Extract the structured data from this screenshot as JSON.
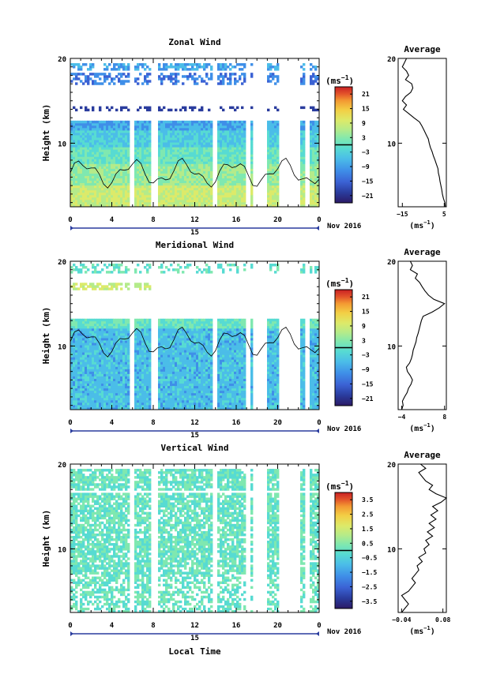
{
  "chart_data": [
    {
      "type": "heatmap",
      "title": "Zonal Wind",
      "ylabel": "Height (km)",
      "yticks": [
        "10",
        "20"
      ],
      "ylim": [
        2.5,
        20
      ],
      "xticks": [
        "0",
        "4",
        "8",
        "12",
        "16",
        "20",
        "0"
      ],
      "xlim": [
        0,
        24
      ],
      "day_label": "15",
      "date_label": "Nov 2016",
      "colorbar": {
        "unit": "(ms",
        "unit_exp": "−1",
        "ticks": [
          "21",
          "15",
          "9",
          "3",
          "−3",
          "−9",
          "−15",
          "−21"
        ],
        "range": [
          -24,
          24
        ]
      },
      "average": {
        "title": "Average",
        "xticks": [
          "−15",
          "5"
        ],
        "xlim": [
          -17,
          6
        ],
        "xunit": "(ms",
        "xunit_exp": "−1",
        "yticks": [
          "10",
          "20"
        ],
        "profile": [
          [
            5.5,
            2.5
          ],
          [
            5.3,
            3
          ],
          [
            4.6,
            3.5
          ],
          [
            4.1,
            4
          ],
          [
            3.8,
            4.5
          ],
          [
            3.4,
            5
          ],
          [
            3,
            5.5
          ],
          [
            2.7,
            6
          ],
          [
            2.2,
            6.5
          ],
          [
            2,
            7
          ],
          [
            1.3,
            7.5
          ],
          [
            0.6,
            8
          ],
          [
            -0.2,
            8.5
          ],
          [
            -0.8,
            9
          ],
          [
            -1.6,
            9.5
          ],
          [
            -2.2,
            10
          ],
          [
            -2.6,
            10.5
          ],
          [
            -3.6,
            11
          ],
          [
            -4.6,
            11.5
          ],
          [
            -5.6,
            12
          ],
          [
            -6.8,
            12.5
          ],
          [
            -9.5,
            13
          ],
          [
            -12,
            13.5
          ],
          [
            -14.5,
            14
          ],
          [
            -13,
            14.5
          ],
          [
            -15,
            15
          ],
          [
            -13.5,
            15.5
          ],
          [
            -11,
            16
          ],
          [
            -10,
            16.5
          ],
          [
            -10.5,
            17
          ],
          [
            -13.5,
            17.5
          ],
          [
            -12,
            18
          ],
          [
            -13,
            18.5
          ],
          [
            -15,
            19
          ],
          [
            -14,
            19.5
          ],
          [
            -13,
            20
          ]
        ]
      }
    },
    {
      "type": "heatmap",
      "title": "Meridional Wind",
      "ylabel": "Height (km)",
      "yticks": [
        "10",
        "20"
      ],
      "ylim": [
        2.5,
        20
      ],
      "xticks": [
        "0",
        "4",
        "8",
        "12",
        "16",
        "20",
        "0"
      ],
      "xlim": [
        0,
        24
      ],
      "day_label": "15",
      "date_label": "Nov 2016",
      "colorbar": {
        "unit": "(ms",
        "unit_exp": "−1",
        "ticks": [
          "21",
          "15",
          "9",
          "3",
          "−3",
          "−9",
          "−15",
          "−21"
        ],
        "range": [
          -24,
          24
        ]
      },
      "average": {
        "title": "Average",
        "xticks": [
          "−4",
          "8"
        ],
        "xlim": [
          -5,
          8.5
        ],
        "xunit": "(ms",
        "xunit_exp": "−1",
        "yticks": [
          "10",
          "20"
        ],
        "profile": [
          [
            -4,
            2.5
          ],
          [
            -3.6,
            3
          ],
          [
            -3.8,
            3.5
          ],
          [
            -3.2,
            4
          ],
          [
            -2.5,
            4.5
          ],
          [
            -2.1,
            5
          ],
          [
            -1.4,
            5.5
          ],
          [
            -1,
            6
          ],
          [
            -1.6,
            6.5
          ],
          [
            -2.4,
            7
          ],
          [
            -2.7,
            7.5
          ],
          [
            -1.8,
            8
          ],
          [
            -1.3,
            8.5
          ],
          [
            -1,
            9
          ],
          [
            -0.8,
            9.5
          ],
          [
            -0.4,
            10
          ],
          [
            0,
            10.5
          ],
          [
            0.2,
            11
          ],
          [
            0.6,
            11.5
          ],
          [
            0.9,
            12
          ],
          [
            1.2,
            12.5
          ],
          [
            1.5,
            13
          ],
          [
            2,
            13.5
          ],
          [
            4.5,
            14
          ],
          [
            6.5,
            14.5
          ],
          [
            8,
            15
          ],
          [
            5,
            15.5
          ],
          [
            3.5,
            16
          ],
          [
            2.5,
            16.5
          ],
          [
            1.7,
            17
          ],
          [
            1,
            17.5
          ],
          [
            -0.2,
            18
          ],
          [
            0.4,
            18.5
          ],
          [
            -1.6,
            19
          ],
          [
            -1,
            19.5
          ],
          [
            -1.6,
            20
          ]
        ]
      }
    },
    {
      "type": "heatmap",
      "title": "Vertical Wind",
      "ylabel": "Height (km)",
      "yticks": [
        "10",
        "20"
      ],
      "ylim": [
        2.5,
        20
      ],
      "xticks": [
        "0",
        "4",
        "8",
        "12",
        "16",
        "20",
        "0"
      ],
      "xlim": [
        0,
        24
      ],
      "xlabel": "Local Time",
      "day_label": "15",
      "date_label": "Nov 2016",
      "colorbar": {
        "unit": "(ms",
        "unit_exp": "−1",
        "ticks": [
          "3.5",
          "2.5",
          "1.5",
          "0.5",
          "−0.5",
          "−1.5",
          "−2.5",
          "−3.5"
        ],
        "range": [
          -4,
          4
        ]
      },
      "average": {
        "title": "Average",
        "xticks": [
          "−0.04",
          "0.08"
        ],
        "xlim": [
          -0.05,
          0.09
        ],
        "xunit": "(ms",
        "xunit_exp": "−1",
        "yticks": [
          "10",
          "20"
        ],
        "profile": [
          [
            -0.04,
            2.5
          ],
          [
            -0.03,
            3
          ],
          [
            -0.02,
            3.5
          ],
          [
            -0.03,
            4
          ],
          [
            -0.04,
            4.5
          ],
          [
            -0.02,
            5
          ],
          [
            -0.01,
            5.5
          ],
          [
            0,
            6
          ],
          [
            -0.01,
            6.5
          ],
          [
            0,
            7
          ],
          [
            0.01,
            7.5
          ],
          [
            0.005,
            8
          ],
          [
            0.02,
            8.5
          ],
          [
            0.01,
            9
          ],
          [
            0.03,
            9.5
          ],
          [
            0.025,
            10
          ],
          [
            0.04,
            10.5
          ],
          [
            0.03,
            11
          ],
          [
            0.05,
            11.5
          ],
          [
            0.035,
            12
          ],
          [
            0.055,
            12.5
          ],
          [
            0.04,
            13
          ],
          [
            0.06,
            13.5
          ],
          [
            0.045,
            14
          ],
          [
            0.065,
            14.5
          ],
          [
            0.05,
            15
          ],
          [
            0.075,
            15.5
          ],
          [
            0.09,
            16
          ],
          [
            0.06,
            16.5
          ],
          [
            0.04,
            17
          ],
          [
            0.05,
            17.5
          ],
          [
            0.03,
            18
          ],
          [
            0.02,
            18.5
          ],
          [
            0.01,
            19
          ],
          [
            0.03,
            19.5
          ],
          [
            0.015,
            20
          ]
        ]
      }
    }
  ],
  "colors": {
    "palette": [
      "#2b1a66",
      "#2a3c9e",
      "#3b62d4",
      "#3f8fe8",
      "#4bbde8",
      "#57dbd2",
      "#7fe8b0",
      "#b4eb8a",
      "#dcea6a",
      "#f3cf45",
      "#f39a32",
      "#e3532a",
      "#c81f23"
    ]
  }
}
